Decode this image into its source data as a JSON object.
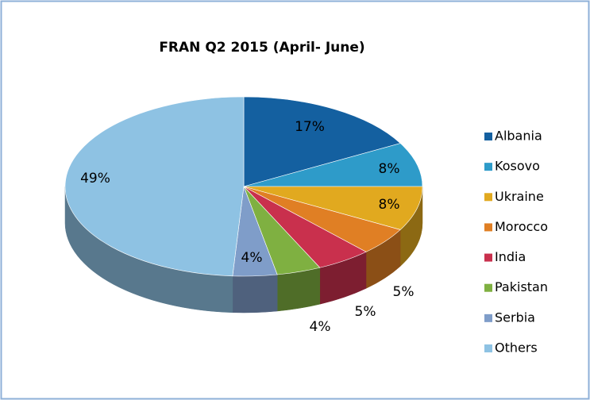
{
  "chart_data": {
    "type": "pie3d",
    "title": "FRAN  Q2 2015 (April- June)",
    "categories": [
      "Albania",
      "Kosovo",
      "Ukraine",
      "Morocco",
      "India",
      "Pakistan",
      "Serbia",
      "Others"
    ],
    "values": [
      17,
      8,
      8,
      5,
      5,
      4,
      4,
      49
    ],
    "value_labels": [
      "17%",
      "8%",
      "8%",
      "5%",
      "5%",
      "4%",
      "4%",
      "49%"
    ],
    "colors": [
      "#1460a0",
      "#2e9bc9",
      "#e1a91f",
      "#e07f24",
      "#c9304d",
      "#7fb041",
      "#7f9dc9",
      "#8ec2e3"
    ],
    "legend": "right"
  }
}
